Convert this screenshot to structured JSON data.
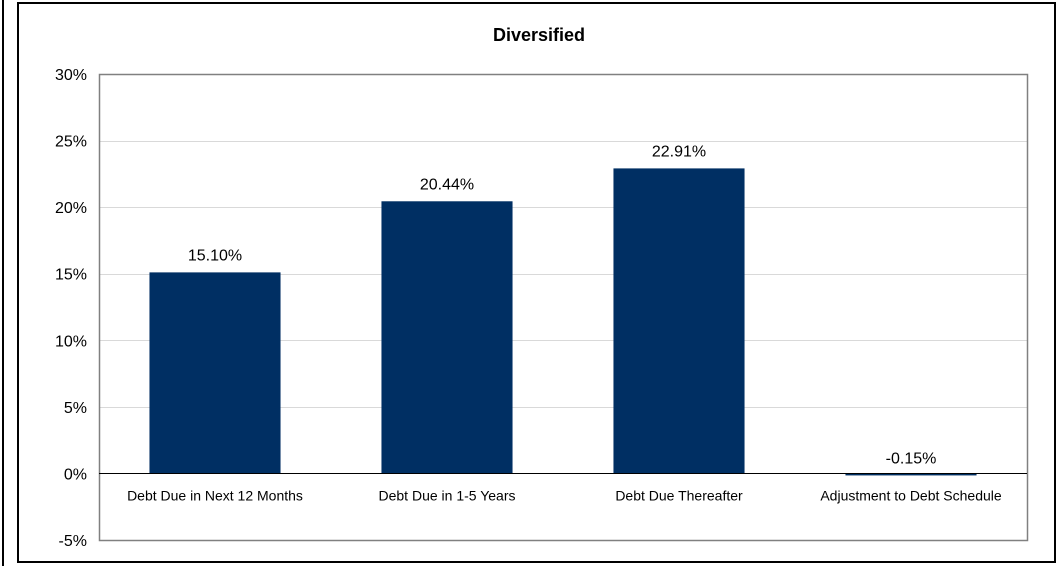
{
  "chart_data": {
    "type": "bar",
    "title": "Diversified",
    "xlabel": "",
    "ylabel": "",
    "categories": [
      "Debt Due in Next 12 Months",
      "Debt Due in 1-5 Years",
      "Debt Due Thereafter",
      "Adjustment to Debt Schedule"
    ],
    "values": [
      15.1,
      20.44,
      22.91,
      -0.15
    ],
    "data_labels": [
      "15.10%",
      "20.44%",
      "22.91%",
      "-0.15%"
    ],
    "ylim": [
      -5,
      30
    ],
    "yticks": [
      30,
      25,
      20,
      15,
      10,
      5,
      0,
      -5
    ],
    "ytick_labels": [
      "30%",
      "25%",
      "20%",
      "15%",
      "10%",
      "5%",
      "0%",
      "-5%"
    ],
    "grid": true,
    "legend": "none",
    "colors": {
      "bar": "#002F63",
      "gridline": "#D9D9D9",
      "axis": "#000000",
      "plot_border": "#808080"
    }
  }
}
